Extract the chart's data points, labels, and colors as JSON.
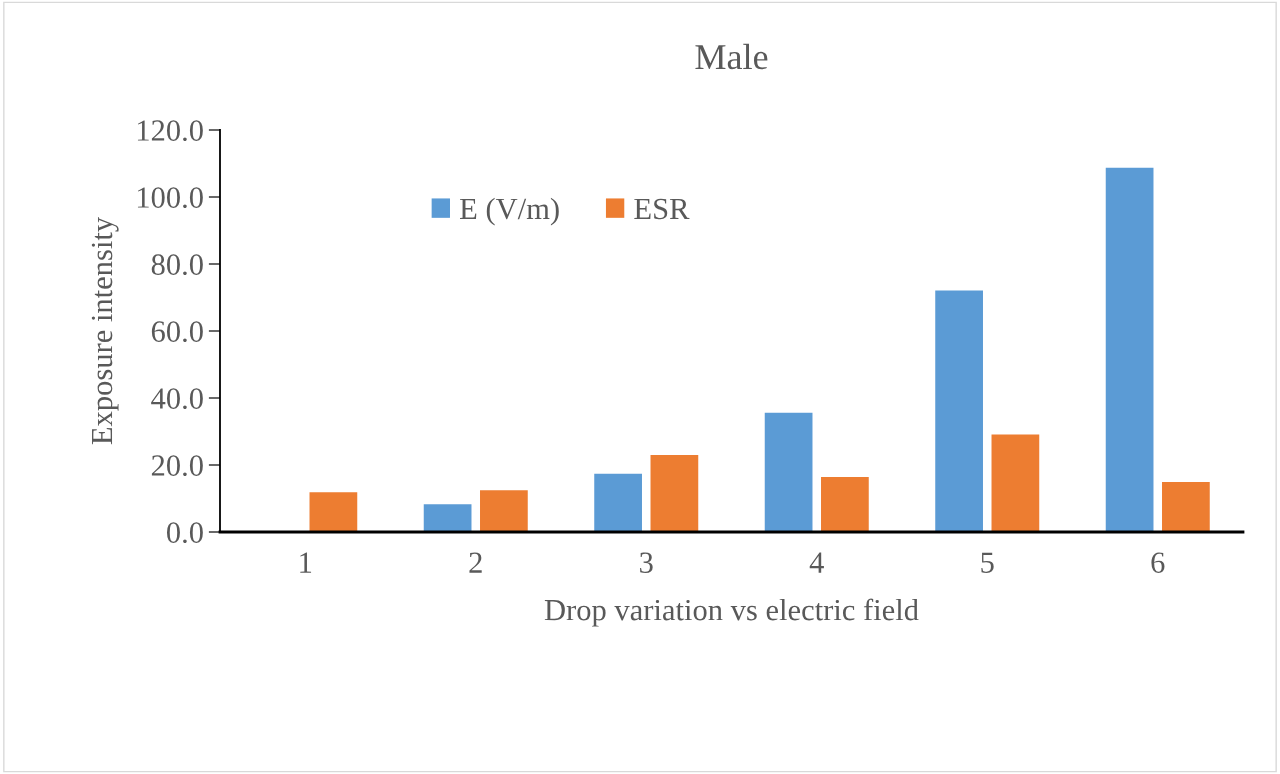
{
  "chart_data": {
    "type": "bar",
    "title": "Male",
    "xlabel": "Drop variation vs electric field",
    "ylabel": "Exposure intensity",
    "categories": [
      "1",
      "2",
      "3",
      "4",
      "5",
      "6"
    ],
    "series": [
      {
        "name": "E (V/m)",
        "color": "#5b9bd5",
        "values": [
          0,
          8.3,
          17.4,
          35.6,
          72.1,
          108.7
        ]
      },
      {
        "name": "ESR",
        "color": "#ed7d31",
        "values": [
          11.9,
          12.5,
          23.0,
          16.4,
          29.1,
          14.9
        ]
      }
    ],
    "ylim": [
      0,
      120
    ],
    "yticks": [
      {
        "value": 0,
        "label": "0.0"
      },
      {
        "value": 20,
        "label": "20.0"
      },
      {
        "value": 40,
        "label": "40.0"
      },
      {
        "value": 60,
        "label": "60.0"
      },
      {
        "value": 80,
        "label": "80.0"
      },
      {
        "value": 100,
        "label": "100.0"
      },
      {
        "value": 120,
        "label": "120.0"
      }
    ],
    "grid": false,
    "legend": "top left"
  }
}
